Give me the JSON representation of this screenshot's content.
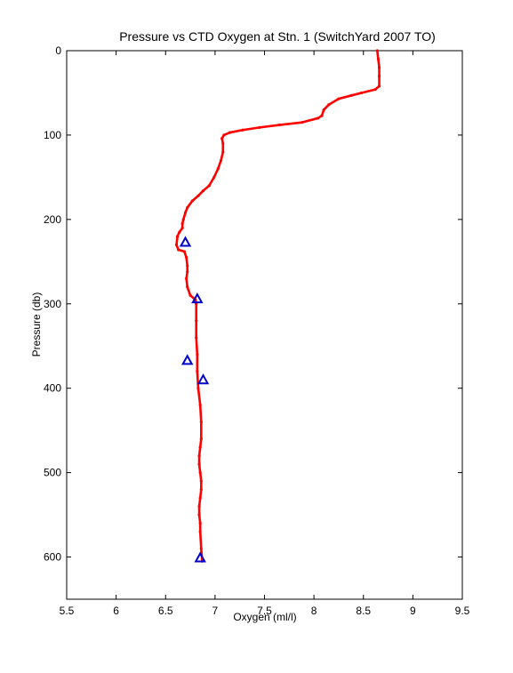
{
  "chart_data": {
    "type": "scatter",
    "title": "Pressure vs CTD Oxygen at Stn. 1 (SwitchYard 2007 TO)",
    "xlabel": "Oxygen (ml/l)",
    "ylabel": "Pressure (db)",
    "xlim": [
      5.5,
      9.5
    ],
    "ylim": [
      0,
      650
    ],
    "y_reversed": true,
    "grid": false,
    "xticks": [
      5.5,
      6,
      6.5,
      7,
      7.5,
      8,
      8.5,
      9,
      9.5
    ],
    "xtick_labels": [
      "5.5",
      "6",
      "6.5",
      "7",
      "7.5",
      "8",
      "8.5",
      "9",
      "9.5"
    ],
    "yticks": [
      0,
      100,
      200,
      300,
      400,
      500,
      600
    ],
    "ytick_labels": [
      "0",
      "100",
      "200",
      "300",
      "400",
      "500",
      "600"
    ],
    "series": [
      {
        "type": "line",
        "color": "#ff0000",
        "marker": "dot",
        "x": [
          8.64,
          8.65,
          8.66,
          8.66,
          8.66,
          8.62,
          8.48,
          8.38,
          8.25,
          8.15,
          8.1,
          8.08,
          8.04,
          7.88,
          7.65,
          7.45,
          7.28,
          7.15,
          7.09,
          7.07,
          7.08,
          7.08,
          7.06,
          7.03,
          6.99,
          6.94,
          6.88,
          6.83,
          6.77,
          6.72,
          6.7,
          6.68,
          6.67,
          6.67,
          6.64,
          6.62,
          6.61,
          6.63,
          6.69,
          6.71,
          6.72,
          6.72,
          6.71,
          6.72,
          6.75,
          6.8,
          6.81,
          6.81,
          6.81,
          6.82,
          6.82,
          6.83,
          6.85,
          6.86,
          6.86,
          6.85,
          6.84,
          6.84,
          6.85,
          6.86,
          6.86,
          6.85,
          6.84,
          6.84,
          6.85,
          6.85,
          6.86,
          6.87
        ],
        "y": [
          0,
          10,
          20,
          30,
          42,
          46,
          50,
          53,
          57,
          64,
          70,
          77,
          80,
          85,
          88,
          91,
          94,
          97,
          100,
          104,
          110,
          120,
          130,
          140,
          150,
          160,
          166,
          172,
          178,
          186,
          192,
          200,
          205,
          210,
          215,
          220,
          230,
          236,
          238,
          245,
          255,
          262,
          270,
          280,
          290,
          295,
          300,
          320,
          340,
          360,
          380,
          400,
          420,
          440,
          460,
          470,
          480,
          490,
          500,
          510,
          520,
          530,
          540,
          550,
          560,
          570,
          590,
          605
        ]
      },
      {
        "type": "scatter",
        "color": "#0000cc",
        "marker": "triangle",
        "x": [
          6.7,
          6.82,
          6.72,
          6.88,
          6.85
        ],
        "y": [
          227,
          294,
          367,
          390,
          601
        ]
      }
    ]
  }
}
